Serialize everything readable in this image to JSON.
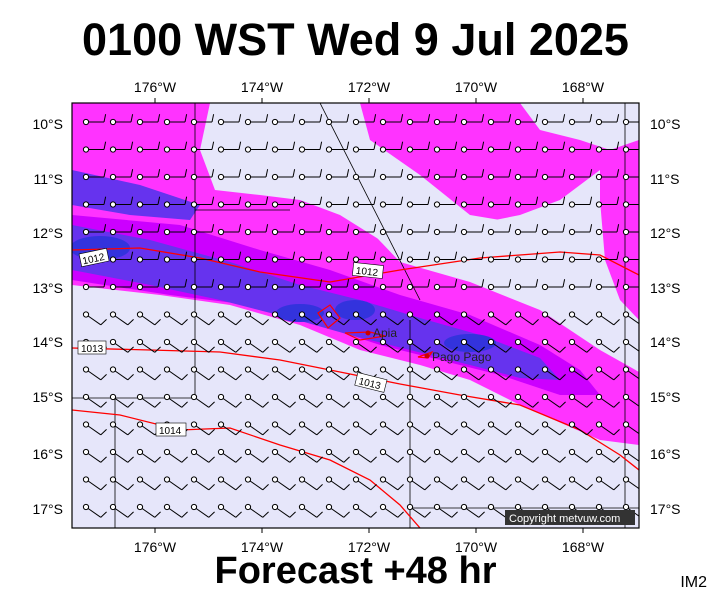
{
  "header": {
    "title": "0100 WST Wed 9 Jul 2025"
  },
  "footer": {
    "forecast": "Forecast +48 hr",
    "code": "IM2"
  },
  "map": {
    "lon_labels": [
      "176°W",
      "174°W",
      "172°W",
      "170°W",
      "168°W"
    ],
    "lat_labels": [
      "10°S",
      "11°S",
      "12°S",
      "13°S",
      "14°S",
      "15°S",
      "16°S",
      "17°S"
    ],
    "cities": [
      {
        "name": "Apia"
      },
      {
        "name": "Pago Pago"
      }
    ],
    "isobars": [
      "1012",
      "1012",
      "1013",
      "1013",
      "1014"
    ],
    "copyright": "Copyright metvuw.com",
    "colors": {
      "background": "#e6e6fa",
      "light": "#ff33ff",
      "mid": "#cc00ff",
      "strong": "#6633ee",
      "heavy": "#3333dd",
      "isobar": "#ff0000"
    }
  }
}
